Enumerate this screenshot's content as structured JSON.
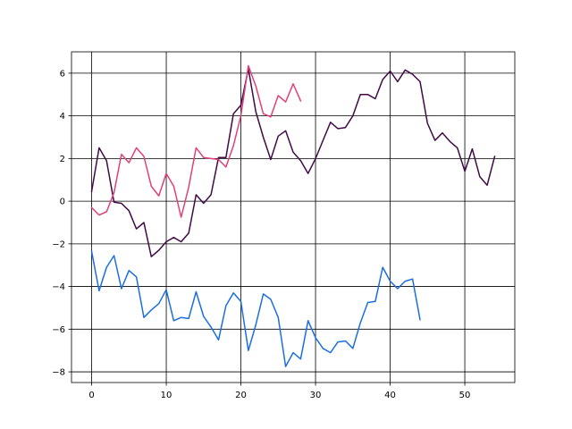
{
  "chart_data": {
    "type": "line",
    "title": "",
    "xlabel": "",
    "ylabel": "",
    "xlim": [
      -2.7,
      56.7
    ],
    "ylim": [
      -8.5,
      7.0
    ],
    "xticks": [
      0,
      10,
      20,
      30,
      40,
      50
    ],
    "yticks": [
      -8,
      -6,
      -4,
      -2,
      0,
      2,
      4,
      6
    ],
    "grid": true,
    "series": [
      {
        "color": "#400a46",
        "x": [
          0,
          1,
          2,
          3,
          4,
          5,
          6,
          7,
          8,
          9,
          10,
          11,
          12,
          13,
          14,
          15,
          16,
          17,
          18,
          19,
          20,
          21,
          22,
          23,
          24,
          25,
          26,
          27,
          28,
          29,
          30,
          31,
          32,
          33,
          34,
          35,
          36,
          37,
          38,
          39,
          40,
          41,
          42,
          43,
          44,
          45,
          46,
          47,
          48,
          49,
          50,
          51,
          52,
          53,
          54
        ],
        "y": [
          0.45,
          2.5,
          1.9,
          -0.05,
          -0.1,
          -0.45,
          -1.3,
          -1.0,
          -2.6,
          -2.3,
          -1.9,
          -1.7,
          -1.9,
          -1.5,
          0.3,
          -0.1,
          0.3,
          2.05,
          2.05,
          4.1,
          4.5,
          6.2,
          4.2,
          3.0,
          1.95,
          3.05,
          3.3,
          2.3,
          1.9,
          1.3,
          2.0,
          2.85,
          3.7,
          3.4,
          3.45,
          4.0,
          5.0,
          5.0,
          4.8,
          5.7,
          6.1,
          5.6,
          6.15,
          5.95,
          5.6,
          3.65,
          2.85,
          3.2,
          2.8,
          2.5,
          1.4,
          2.45,
          1.15,
          0.75,
          2.1
        ]
      },
      {
        "color": "#e0407a",
        "x": [
          0,
          1,
          2,
          3,
          4,
          5,
          6,
          7,
          8,
          9,
          10,
          11,
          12,
          13,
          14,
          15,
          16,
          17,
          18,
          19,
          20,
          21,
          22,
          23,
          24,
          25,
          26,
          27,
          28
        ],
        "y": [
          -0.3,
          -0.65,
          -0.5,
          0.4,
          2.2,
          1.8,
          2.5,
          2.1,
          0.7,
          0.25,
          1.3,
          0.7,
          -0.75,
          0.65,
          2.5,
          2.05,
          2.0,
          1.95,
          1.6,
          2.6,
          4.0,
          6.35,
          5.4,
          4.1,
          3.95,
          4.95,
          4.65,
          5.5,
          4.7
        ]
      },
      {
        "color": "#1a6fe0",
        "x": [
          0,
          1,
          2,
          3,
          4,
          5,
          6,
          7,
          8,
          9,
          10,
          11,
          12,
          13,
          14,
          15,
          16,
          17,
          18,
          19,
          20,
          21,
          22,
          23,
          24,
          25,
          26,
          27,
          28,
          29,
          30,
          31,
          32,
          33,
          34,
          35,
          36,
          37,
          38,
          39,
          40,
          41,
          42,
          43,
          44
        ],
        "y": [
          -2.35,
          -4.2,
          -3.1,
          -2.55,
          -4.1,
          -3.25,
          -3.55,
          -5.45,
          -5.1,
          -4.8,
          -4.15,
          -5.6,
          -5.45,
          -5.5,
          -4.25,
          -5.4,
          -5.9,
          -6.5,
          -4.9,
          -4.3,
          -4.7,
          -7.0,
          -5.8,
          -4.35,
          -4.6,
          -5.45,
          -7.75,
          -7.1,
          -7.4,
          -5.6,
          -6.4,
          -6.9,
          -7.1,
          -6.6,
          -6.55,
          -6.9,
          -5.7,
          -4.75,
          -4.7,
          -3.1,
          -3.75,
          -4.1,
          -3.75,
          -3.65,
          -5.55
        ]
      }
    ]
  }
}
